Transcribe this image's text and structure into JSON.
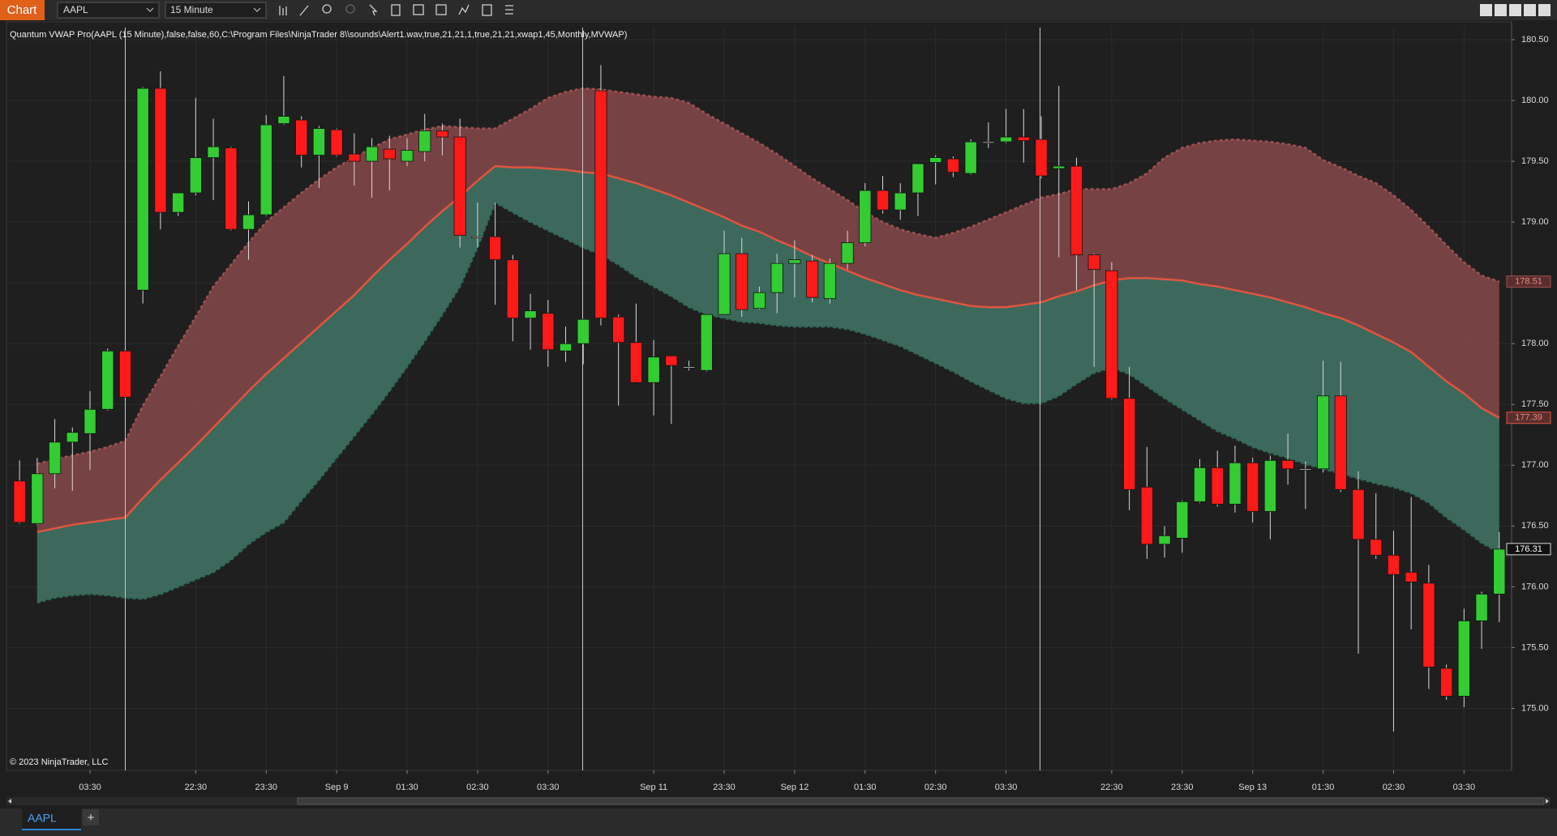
{
  "toolbar": {
    "app_label": "Chart",
    "instrument": "AAPL",
    "interval": "15 Minute"
  },
  "tabs": {
    "active": "AAPL",
    "add": "+"
  },
  "chart_data": {
    "type": "candlestick",
    "title": "Quantum VWAP Pro(AAPL (15 Minute),false,false,60,C:\\Program Files\\NinjaTrader 8\\\\sounds\\Alert1.wav,true,21,21,1,true,21,21,xwap1,45,Monthly,MVWAP)",
    "copyright": "© 2023 NinjaTrader, LLC",
    "up_color": "#33cc33",
    "down_color": "#ff1a1a",
    "doji_color": "#e6e6e6",
    "grid": true,
    "categories": [
      null,
      null,
      null,
      null,
      "03:30",
      null,
      null,
      null,
      null,
      null,
      "22:30",
      null,
      null,
      null,
      "23:30",
      null,
      null,
      null,
      "Sep 9",
      null,
      null,
      null,
      "01:30",
      null,
      null,
      null,
      "02:30",
      null,
      null,
      null,
      "03:30",
      null,
      null,
      null,
      null,
      null,
      "Sep 11",
      null,
      null,
      null,
      "23:30",
      null,
      null,
      null,
      "Sep 12",
      null,
      null,
      null,
      "01:30",
      null,
      null,
      null,
      "02:30",
      null,
      null,
      null,
      "03:30",
      null,
      null,
      null,
      null,
      null,
      "22:30",
      null,
      null,
      null,
      "23:30",
      null,
      null,
      null,
      "Sep 13",
      null,
      null,
      null,
      "01:30",
      null,
      null,
      null,
      "02:30",
      null,
      null,
      null,
      "03:30",
      null,
      null
    ],
    "open": [
      176.87,
      176.52,
      176.93,
      177.19,
      177.26,
      177.46,
      177.94,
      178.44,
      180.1,
      179.08,
      179.24,
      179.53,
      179.61,
      178.94,
      179.06,
      179.81,
      179.84,
      179.55,
      179.76,
      179.56,
      179.5,
      179.6,
      179.5,
      179.58,
      179.75,
      179.7,
      178.88,
      178.88,
      178.69,
      178.21,
      178.25,
      177.94,
      178.0,
      180.08,
      178.22,
      178.01,
      177.68,
      177.9,
      177.81,
      177.78,
      178.24,
      178.74,
      178.29,
      178.42,
      178.66,
      178.68,
      178.37,
      178.66,
      178.83,
      179.26,
      179.1,
      179.24,
      179.49,
      179.52,
      179.4,
      179.66,
      179.66,
      179.7,
      179.68,
      179.44,
      179.46,
      178.73,
      178.6,
      177.55,
      176.82,
      176.35,
      176.4,
      176.7,
      176.98,
      176.68,
      177.02,
      176.62,
      177.04,
      176.97,
      176.97,
      177.57,
      176.8,
      176.39,
      176.26,
      176.12,
      176.03,
      175.33,
      175.1,
      175.72,
      175.94
    ],
    "high": [
      177.04,
      177.06,
      177.38,
      177.31,
      177.61,
      177.96,
      177.96,
      180.11,
      180.24,
      179.24,
      180.02,
      179.85,
      179.62,
      179.17,
      179.88,
      180.2,
      179.87,
      179.79,
      179.77,
      179.73,
      179.69,
      179.71,
      179.69,
      179.89,
      179.81,
      179.85,
      179.16,
      179.16,
      178.73,
      178.41,
      178.36,
      178.14,
      178.2,
      180.29,
      178.24,
      178.33,
      178.03,
      177.9,
      177.86,
      178.24,
      178.93,
      178.87,
      178.47,
      178.74,
      178.85,
      178.73,
      178.7,
      178.93,
      179.32,
      179.38,
      179.32,
      179.48,
      179.55,
      179.54,
      179.68,
      179.82,
      179.93,
      179.93,
      179.87,
      180.12,
      179.53,
      178.74,
      178.67,
      177.81,
      177.15,
      176.5,
      176.71,
      177.05,
      177.12,
      177.16,
      177.06,
      177.08,
      177.26,
      177.03,
      177.86,
      177.85,
      176.95,
      176.77,
      176.46,
      176.74,
      176.18,
      175.36,
      175.82,
      175.96,
      176.45
    ],
    "low": [
      176.52,
      176.51,
      176.81,
      176.79,
      176.96,
      177.45,
      177.54,
      178.33,
      178.94,
      179.05,
      179.22,
      179.18,
      178.93,
      178.69,
      179.05,
      179.8,
      179.45,
      179.28,
      179.54,
      179.3,
      179.2,
      179.26,
      179.46,
      179.5,
      179.55,
      178.79,
      178.79,
      178.32,
      178.02,
      177.95,
      177.81,
      177.85,
      177.83,
      178.15,
      177.49,
      177.68,
      177.41,
      177.34,
      177.78,
      177.77,
      178.24,
      178.22,
      178.28,
      178.25,
      178.38,
      178.34,
      178.33,
      178.61,
      178.8,
      179.07,
      179.02,
      179.05,
      179.31,
      179.37,
      179.39,
      179.61,
      179.65,
      179.49,
      179.36,
      178.71,
      178.44,
      177.81,
      177.54,
      176.63,
      176.23,
      176.24,
      176.28,
      176.69,
      176.66,
      176.61,
      176.53,
      176.39,
      176.84,
      176.64,
      176.94,
      176.78,
      175.45,
      176.23,
      174.81,
      175.65,
      175.16,
      175.07,
      175.01,
      175.49,
      175.71
    ],
    "close": [
      176.53,
      176.93,
      177.19,
      177.27,
      177.46,
      177.94,
      177.56,
      180.1,
      179.08,
      179.24,
      179.53,
      179.62,
      178.94,
      179.06,
      179.8,
      179.87,
      179.55,
      179.77,
      179.55,
      179.5,
      179.62,
      179.52,
      179.59,
      179.75,
      179.7,
      178.89,
      178.88,
      178.69,
      178.21,
      178.27,
      177.95,
      178.0,
      178.2,
      178.21,
      178.01,
      177.68,
      177.89,
      177.82,
      177.81,
      178.24,
      178.74,
      178.28,
      178.42,
      178.66,
      178.69,
      178.38,
      178.66,
      178.83,
      179.26,
      179.1,
      179.24,
      179.48,
      179.53,
      179.41,
      179.66,
      179.66,
      179.7,
      179.67,
      179.38,
      179.46,
      178.73,
      178.61,
      177.55,
      176.8,
      176.35,
      176.42,
      176.7,
      176.98,
      176.68,
      177.02,
      176.62,
      177.04,
      176.97,
      176.97,
      177.57,
      176.8,
      176.39,
      176.26,
      176.1,
      176.04,
      175.34,
      175.1,
      175.72,
      175.94,
      176.31
    ],
    "value_labels": [
      null,
      null,
      null,
      null,
      null,
      null,
      null,
      null,
      null,
      null,
      null,
      null,
      null,
      null,
      null,
      null,
      null,
      null,
      null,
      null,
      null,
      null,
      null,
      null,
      null,
      null,
      null,
      null,
      null,
      null,
      null,
      null,
      null,
      null,
      null,
      null,
      null,
      null,
      null,
      null,
      null,
      null,
      null,
      null,
      null,
      null,
      null,
      null,
      null,
      null,
      null,
      null,
      null,
      null,
      null,
      null,
      null,
      null,
      null,
      null,
      null,
      null,
      null,
      null,
      null,
      null,
      null,
      null,
      null,
      null,
      null,
      null,
      null,
      null,
      null,
      null,
      null,
      null,
      null,
      null,
      null,
      null,
      null,
      null,
      "176.31"
    ],
    "series": [
      {
        "type": "line",
        "color": "#a0514f",
        "dash": true,
        "fill": "#7c4547",
        "values": [
          null,
          177.01,
          177.05,
          177.08,
          177.11,
          177.15,
          177.2,
          177.49,
          177.73,
          177.98,
          178.22,
          178.47,
          178.65,
          178.83,
          179.0,
          179.12,
          179.24,
          179.35,
          179.45,
          179.53,
          179.61,
          179.68,
          179.72,
          179.76,
          179.79,
          179.78,
          179.77,
          179.77,
          179.85,
          179.93,
          180.02,
          180.07,
          180.1,
          180.09,
          180.07,
          180.05,
          180.03,
          180.02,
          179.98,
          179.89,
          179.81,
          179.73,
          179.65,
          179.56,
          179.46,
          179.36,
          179.27,
          179.18,
          179.08,
          179.0,
          178.94,
          178.9,
          178.87,
          178.91,
          178.96,
          179.02,
          179.08,
          179.14,
          179.2,
          179.23,
          179.27,
          179.27,
          179.27,
          179.32,
          179.4,
          179.53,
          179.61,
          179.65,
          179.67,
          179.68,
          179.67,
          179.66,
          179.64,
          179.61,
          179.51,
          179.45,
          179.38,
          179.32,
          179.22,
          179.1,
          178.96,
          178.81,
          178.67,
          178.56,
          178.51
        ],
        "value_labels": [
          null,
          null,
          null,
          null,
          null,
          null,
          null,
          null,
          null,
          null,
          null,
          null,
          null,
          null,
          null,
          null,
          null,
          null,
          null,
          null,
          null,
          null,
          null,
          null,
          null,
          null,
          null,
          null,
          null,
          null,
          null,
          null,
          null,
          null,
          null,
          null,
          null,
          null,
          null,
          null,
          null,
          null,
          null,
          null,
          null,
          null,
          null,
          null,
          null,
          null,
          null,
          null,
          null,
          null,
          null,
          null,
          null,
          null,
          null,
          null,
          null,
          null,
          null,
          null,
          null,
          null,
          null,
          null,
          null,
          null,
          null,
          null,
          null,
          null,
          null,
          null,
          null,
          null,
          null,
          null,
          null,
          null,
          null,
          null,
          "178.51"
        ]
      },
      {
        "type": "line",
        "color": "#e0553f",
        "dash": false,
        "fill": "#3e6e60",
        "values": [
          null,
          176.45,
          176.48,
          176.51,
          176.53,
          176.55,
          176.57,
          176.73,
          176.88,
          177.02,
          177.16,
          177.31,
          177.46,
          177.61,
          177.75,
          177.88,
          178.01,
          178.14,
          178.27,
          178.4,
          178.55,
          178.69,
          178.82,
          178.96,
          179.09,
          179.21,
          179.34,
          179.46,
          179.45,
          179.45,
          179.44,
          179.43,
          179.41,
          179.4,
          179.36,
          179.32,
          179.27,
          179.22,
          179.16,
          179.1,
          179.04,
          178.97,
          178.92,
          178.85,
          178.79,
          178.72,
          178.66,
          178.6,
          178.54,
          178.49,
          178.44,
          178.4,
          178.37,
          178.34,
          178.31,
          178.3,
          178.3,
          178.32,
          178.34,
          178.39,
          178.43,
          178.48,
          178.52,
          178.54,
          178.54,
          178.53,
          178.52,
          178.49,
          178.47,
          178.44,
          178.41,
          178.38,
          178.34,
          178.3,
          178.25,
          178.21,
          178.15,
          178.08,
          178.01,
          177.93,
          177.81,
          177.69,
          177.59,
          177.47,
          177.39
        ],
        "value_labels": [
          null,
          null,
          null,
          null,
          null,
          null,
          null,
          null,
          null,
          null,
          null,
          null,
          null,
          null,
          null,
          null,
          null,
          null,
          null,
          null,
          null,
          null,
          null,
          null,
          null,
          null,
          null,
          null,
          null,
          null,
          null,
          null,
          null,
          null,
          null,
          null,
          null,
          null,
          null,
          null,
          null,
          null,
          null,
          null,
          null,
          null,
          null,
          null,
          null,
          null,
          null,
          null,
          null,
          null,
          null,
          null,
          null,
          null,
          null,
          null,
          null,
          null,
          null,
          null,
          null,
          null,
          null,
          null,
          null,
          null,
          null,
          null,
          null,
          null,
          null,
          null,
          null,
          null,
          null,
          null,
          null,
          null,
          null,
          null,
          "177.39"
        ]
      },
      {
        "type": "line",
        "color": "#2f6a58",
        "dash": true,
        "values": [
          null,
          175.87,
          175.91,
          175.93,
          175.94,
          175.93,
          175.91,
          175.9,
          175.94,
          176.0,
          176.06,
          176.12,
          176.22,
          176.35,
          176.45,
          176.53,
          176.71,
          176.88,
          177.06,
          177.24,
          177.42,
          177.61,
          177.81,
          178.02,
          178.24,
          178.47,
          178.79,
          179.16,
          179.08,
          179.0,
          178.93,
          178.86,
          178.79,
          178.73,
          178.65,
          178.55,
          178.47,
          178.39,
          178.3,
          178.24,
          178.21,
          178.18,
          178.17,
          178.15,
          178.14,
          178.14,
          178.14,
          178.12,
          178.08,
          178.03,
          177.98,
          177.91,
          177.84,
          177.77,
          177.69,
          177.62,
          177.55,
          177.51,
          177.51,
          177.57,
          177.67,
          177.76,
          177.8,
          177.75,
          177.65,
          177.55,
          177.46,
          177.37,
          177.28,
          177.22,
          177.15,
          177.1,
          177.06,
          177.01,
          176.97,
          176.93,
          176.89,
          176.85,
          176.82,
          176.77,
          176.69,
          176.57,
          176.47,
          176.36,
          176.28
        ]
      }
    ],
    "ylim": [
      174.49,
      180.6
    ],
    "yticks": [
      {
        "value": 175,
        "label": "175.00"
      },
      {
        "value": 175.5,
        "label": "175.50"
      },
      {
        "value": 176,
        "label": "176.00"
      },
      {
        "value": 176.5,
        "label": "176.50"
      },
      {
        "value": 177,
        "label": "177.00"
      },
      {
        "value": 177.5,
        "label": "177.50"
      },
      {
        "value": 178,
        "label": "178.00"
      },
      {
        "value": 178.5,
        "label": "178.50"
      },
      {
        "value": 179,
        "label": "179.00"
      },
      {
        "value": 179.5,
        "label": "179.50"
      },
      {
        "value": 180,
        "label": "180.00"
      },
      {
        "value": 180.5,
        "label": "180.50"
      }
    ]
  }
}
